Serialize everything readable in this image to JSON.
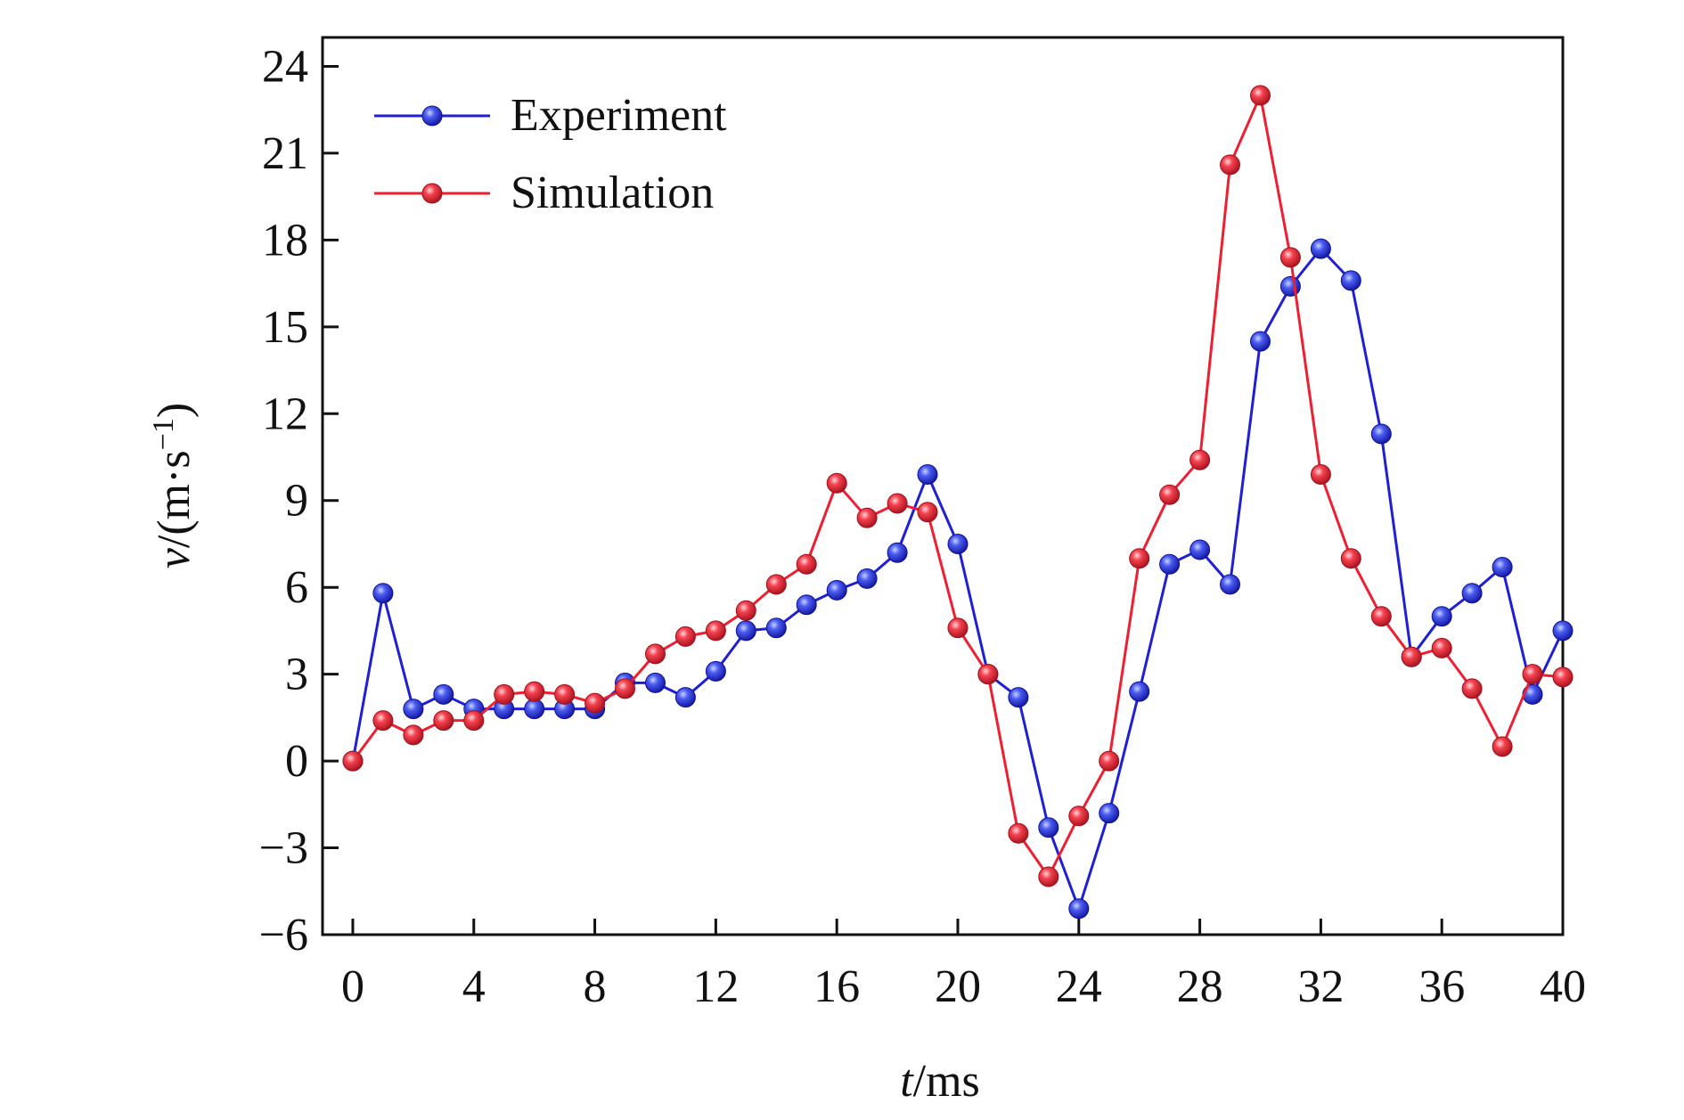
{
  "chart_data": {
    "type": "line",
    "xlabel": {
      "italic": "t",
      "rest": "/ms"
    },
    "ylabel": {
      "italic": "v",
      "rest": "/(m·s",
      "sup": "−1",
      "close": ")"
    },
    "xlim": [
      -1,
      40
    ],
    "ylim": [
      -6,
      25
    ],
    "xticks": [
      0,
      4,
      8,
      12,
      16,
      20,
      24,
      28,
      32,
      36,
      40
    ],
    "yticks": [
      -6,
      -3,
      0,
      3,
      6,
      9,
      12,
      15,
      18,
      21,
      24
    ],
    "xtick_labels": [
      "0",
      "4",
      "8",
      "12",
      "16",
      "20",
      "24",
      "28",
      "32",
      "36",
      "40"
    ],
    "ytick_labels": [
      "−6",
      "−3",
      "0",
      "3",
      "6",
      "9",
      "12",
      "15",
      "18",
      "21",
      "24"
    ],
    "grid": false,
    "legend_position": "top-left",
    "x": [
      0,
      1,
      2,
      3,
      4,
      5,
      6,
      7,
      8,
      9,
      10,
      11,
      12,
      13,
      14,
      15,
      16,
      17,
      18,
      19,
      20,
      21,
      22,
      23,
      24,
      25,
      26,
      27,
      28,
      29,
      30,
      31,
      32,
      33,
      34,
      35,
      36,
      37,
      38,
      39,
      40
    ],
    "series": [
      {
        "name": "Experiment",
        "color": "#1f1fd6",
        "values": [
          0,
          5.8,
          1.8,
          2.3,
          1.8,
          1.8,
          1.8,
          1.8,
          1.8,
          2.7,
          2.7,
          2.2,
          3.1,
          4.5,
          4.6,
          5.4,
          5.9,
          6.3,
          7.2,
          9.9,
          7.5,
          3.0,
          2.2,
          -2.3,
          -5.1,
          -1.8,
          2.4,
          6.8,
          7.3,
          6.1,
          14.5,
          16.4,
          17.7,
          16.6,
          11.3,
          3.6,
          5.0,
          5.8,
          6.7,
          2.3,
          4.5
        ]
      },
      {
        "name": "Simulation",
        "color": "#ef1f32",
        "values": [
          0,
          1.4,
          0.9,
          1.4,
          1.4,
          2.3,
          2.4,
          2.3,
          2.0,
          2.5,
          3.7,
          4.3,
          4.5,
          5.2,
          6.1,
          6.8,
          9.6,
          8.4,
          8.9,
          8.6,
          4.6,
          3.0,
          -2.5,
          -4.0,
          -1.9,
          0,
          7.0,
          9.2,
          10.4,
          20.6,
          23.0,
          17.4,
          9.9,
          7.0,
          5.0,
          3.6,
          3.9,
          2.5,
          0.5,
          3.0,
          2.9
        ]
      }
    ]
  }
}
